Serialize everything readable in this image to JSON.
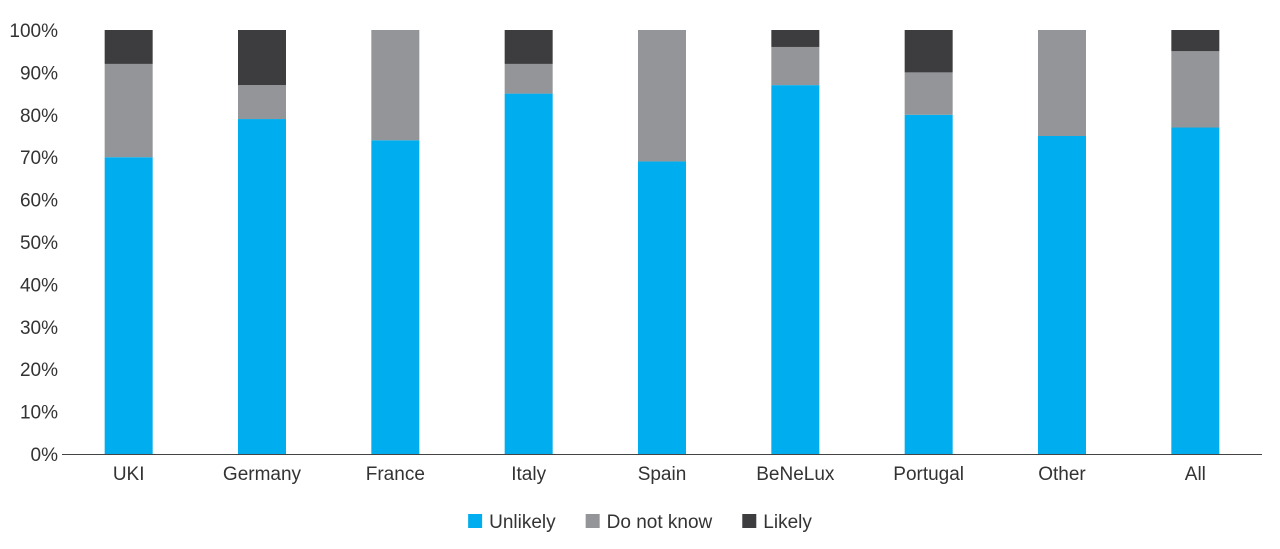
{
  "chart_data": {
    "type": "bar",
    "stacked": true,
    "title": "",
    "xlabel": "",
    "ylabel": "",
    "ylim": [
      0,
      100
    ],
    "yticks": [
      0,
      10,
      20,
      30,
      40,
      50,
      60,
      70,
      80,
      90,
      100
    ],
    "ytick_format": "percent",
    "categories": [
      "UKI",
      "Germany",
      "France",
      "Italy",
      "Spain",
      "BeNeLux",
      "Portugal",
      "Other",
      "All"
    ],
    "series": [
      {
        "name": "Unlikely",
        "color": "#00adee",
        "values": [
          70,
          79,
          74,
          85,
          69,
          87,
          80,
          75,
          77
        ]
      },
      {
        "name": "Do not know",
        "color": "#939598",
        "values": [
          22,
          8,
          26,
          7,
          31,
          9,
          10,
          25,
          18
        ]
      },
      {
        "name": "Likely",
        "color": "#3d3d3f",
        "values": [
          8,
          13,
          0,
          8,
          0,
          4,
          10,
          0,
          5
        ]
      }
    ],
    "legend": {
      "position": "bottom-center"
    },
    "grid": false
  }
}
